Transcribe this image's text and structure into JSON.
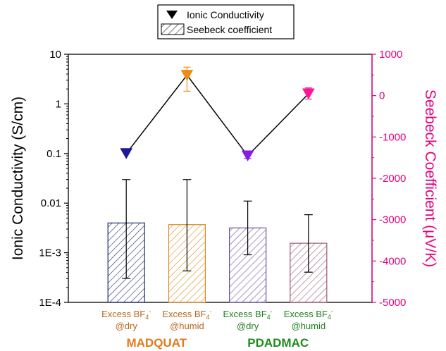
{
  "chart_data": {
    "type": "bar+line",
    "legend": {
      "placement": "top-center",
      "entries": [
        {
          "label": "Ionic Conductivity",
          "marker": "down-triangle"
        },
        {
          "label": "Seebeck coefficient",
          "marker": "hatched-box"
        }
      ]
    },
    "y_left": {
      "label": "Ionic Conductivity (S/cm)",
      "scale": "log",
      "range": [
        0.0001,
        10
      ],
      "ticks": [
        {
          "value": 10,
          "label": "10"
        },
        {
          "value": 1,
          "label": "1"
        },
        {
          "value": 0.1,
          "label": "0.1"
        },
        {
          "value": 0.01,
          "label": "0.01"
        },
        {
          "value": 0.001,
          "label": "1E-3"
        },
        {
          "value": 0.0001,
          "label": "1E-4"
        }
      ]
    },
    "y_right": {
      "label": "Seebeck Coefficient (μV/K)",
      "scale": "linear",
      "range": [
        -5000,
        1000
      ],
      "ticks": [
        1000,
        0,
        -1000,
        -2000,
        -3000,
        -4000,
        -5000
      ],
      "tick_labels": [
        "1000",
        "0",
        "-1000",
        "-2000",
        "-3000",
        "-4000",
        "-5000"
      ],
      "color": "#e6007e"
    },
    "categories": [
      {
        "line1": "Excess BF",
        "sub": "4",
        "sup": "-",
        "line2": "@dry",
        "group": "MADQUAT",
        "color": "#b8651c",
        "bar_color": "#1f2a6b",
        "marker_color": "#1a1a9a"
      },
      {
        "line1": "Excess BF",
        "sub": "4",
        "sup": "-",
        "line2": "@humid",
        "group": "MADQUAT",
        "color": "#b8651c",
        "bar_color": "#e08a1e",
        "marker_color": "#f28a12"
      },
      {
        "line1": "Excess BF",
        "sub": "4",
        "sup": "-",
        "line2": "@dry",
        "group": "PDADMAC",
        "color": "#1e7d1e",
        "bar_color": "#6b4fa0",
        "marker_color": "#8a1be0"
      },
      {
        "line1": "Excess BF",
        "sub": "4",
        "sup": "-",
        "line2": "@humid",
        "group": "PDADMAC",
        "color": "#1e7d1e",
        "bar_color": "#a05a6e",
        "marker_color": "#ff1493"
      }
    ],
    "groups": [
      {
        "name": "MADQUAT",
        "color": "#e07b1a"
      },
      {
        "name": "PDADMAC",
        "color": "#1e8c1e"
      }
    ],
    "series": [
      {
        "name": "Ionic Conductivity",
        "type": "line",
        "axis": "left",
        "values": [
          0.1,
          3.8,
          0.09,
          1.6
        ],
        "err_low": [
          null,
          1.8,
          0.08,
          1.25
        ],
        "err_high": [
          null,
          5.5,
          0.1,
          2.1
        ]
      },
      {
        "name": "Seebeck coefficient",
        "type": "bar",
        "axis": "right",
        "values": [
          -3080,
          -3120,
          -3200,
          -3570
        ],
        "err_low": [
          -4420,
          -4240,
          -3850,
          -4270
        ],
        "err_high": [
          -2030,
          -2030,
          -2550,
          -2880
        ]
      }
    ]
  }
}
